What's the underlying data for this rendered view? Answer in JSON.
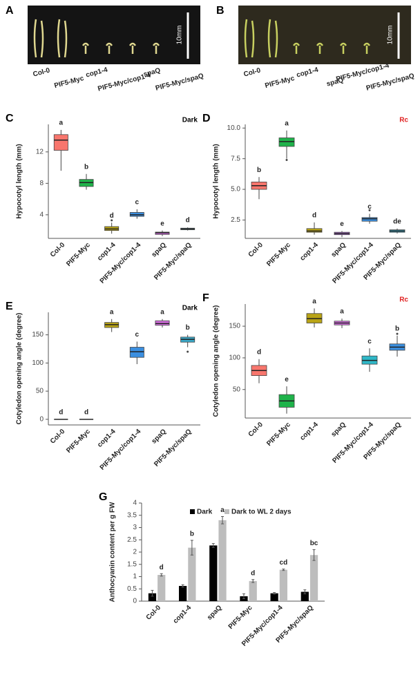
{
  "photos": [
    {
      "panel": "A",
      "scale_label": "10mm",
      "labels": [
        "Col-0",
        "PIF5-Myc",
        "cop1-4",
        "PIF5-Myc/cop1-4",
        "spaQ",
        "PIF5-Myc/spaQ"
      ]
    },
    {
      "panel": "B",
      "scale_label": "10mm",
      "labels": [
        "Col-0",
        "PIF5-Myc",
        "cop1-4",
        "spaQ",
        "PIF5-Myc/cop1-4",
        "PIF5-Myc/spaQ"
      ]
    }
  ],
  "chart_data": [
    {
      "type": "box",
      "panel": "C",
      "condition": "Dark",
      "condition_color": "#000000",
      "ylabel": "Hypocotyl length (mm)",
      "categories": [
        "Col-0",
        "PIF5-Myc",
        "cop1-4",
        "PIF5-Myc/cop1-4",
        "spaQ",
        "PIF5-Myc/spaQ"
      ],
      "colors": [
        "#f8766d",
        "#1fb34a",
        "#b8a316",
        "#3b8fe0",
        "#d56ee0",
        "#3aa8c8"
      ],
      "boxes": [
        {
          "low": 9.6,
          "q1": 12.2,
          "median": 13.5,
          "q3": 14.2,
          "high": 14.8
        },
        {
          "low": 7.2,
          "q1": 7.6,
          "median": 8.1,
          "q3": 8.5,
          "high": 9.2
        },
        {
          "low": 1.6,
          "q1": 2.0,
          "median": 2.2,
          "q3": 2.5,
          "high": 3.0
        },
        {
          "low": 3.5,
          "q1": 3.8,
          "median": 4.0,
          "q3": 4.3,
          "high": 4.7
        },
        {
          "low": 1.3,
          "q1": 1.5,
          "median": 1.7,
          "q3": 1.8,
          "high": 2.0
        },
        {
          "low": 2.0,
          "q1": 2.1,
          "median": 2.2,
          "q3": 2.3,
          "high": 2.4
        }
      ],
      "outliers": [
        {
          "category": "cop1-4",
          "value": 3.3
        }
      ],
      "letters": [
        "a",
        "b",
        "d",
        "c",
        "e",
        "d"
      ],
      "ylim": [
        1,
        15.5
      ],
      "yticks": [
        4,
        8,
        12
      ]
    },
    {
      "type": "box",
      "panel": "D",
      "condition": "Rc",
      "condition_color": "#e02020",
      "ylabel": "Hypocotyl length (mm)",
      "categories": [
        "Col-0",
        "PIF5-Myc",
        "cop1-4",
        "spaQ",
        "PIF5-Myc/cop1-4",
        "PIF5-Myc/spaQ"
      ],
      "colors": [
        "#f8766d",
        "#1fb34a",
        "#b8a316",
        "#b76ee0",
        "#3b8fe0",
        "#3aa8c8"
      ],
      "boxes": [
        {
          "low": 4.2,
          "q1": 5.0,
          "median": 5.3,
          "q3": 5.6,
          "high": 6.0
        },
        {
          "low": 7.5,
          "q1": 8.5,
          "median": 8.9,
          "q3": 9.2,
          "high": 9.8
        },
        {
          "low": 1.3,
          "q1": 1.5,
          "median": 1.6,
          "q3": 1.8,
          "high": 2.3
        },
        {
          "low": 1.1,
          "q1": 1.3,
          "median": 1.4,
          "q3": 1.5,
          "high": 1.6
        },
        {
          "low": 2.2,
          "q1": 2.4,
          "median": 2.6,
          "q3": 2.7,
          "high": 3.0
        },
        {
          "low": 1.4,
          "q1": 1.5,
          "median": 1.6,
          "q3": 1.7,
          "high": 1.8
        }
      ],
      "outliers": [
        {
          "category": "PIF5-Myc",
          "value": 7.4
        },
        {
          "category": "PIF5-Myc/cop1-4",
          "value": 3.3
        }
      ],
      "letters": [
        "b",
        "a",
        "d",
        "e",
        "c",
        "de"
      ],
      "ylim": [
        1,
        10.3
      ],
      "yticks": [
        {
          "value": 2.5,
          "label": "2.5"
        },
        {
          "value": 5,
          "label": "5.0"
        },
        {
          "value": 7.5,
          "label": "7.5"
        },
        {
          "value": 10,
          "label": "10.0"
        }
      ]
    },
    {
      "type": "box",
      "panel": "E",
      "condition": "Dark",
      "condition_color": "#000000",
      "ylabel": "Cotyledon opening angle (degree)",
      "categories": [
        "Col-0",
        "PIF5-Myc",
        "cop1-4",
        "PIF5-Myc/cop1-4",
        "spaQ",
        "PIF5-Myc/spaQ"
      ],
      "colors": [
        "#f8766d",
        "#1fb34a",
        "#b8a316",
        "#3b8fe0",
        "#d56ee0",
        "#3aa8c8"
      ],
      "boxes": [
        {
          "low": 0,
          "q1": 0,
          "median": 0,
          "q3": 0,
          "high": 0
        },
        {
          "low": 0,
          "q1": 0,
          "median": 0,
          "q3": 0,
          "high": 0
        },
        {
          "low": 155,
          "q1": 163,
          "median": 168,
          "q3": 172,
          "high": 178
        },
        {
          "low": 98,
          "q1": 110,
          "median": 120,
          "q3": 128,
          "high": 138
        },
        {
          "low": 163,
          "q1": 167,
          "median": 170,
          "q3": 175,
          "high": 178
        },
        {
          "low": 128,
          "q1": 137,
          "median": 142,
          "q3": 146,
          "high": 150
        }
      ],
      "outliers": [
        {
          "category": "PIF5-Myc/spaQ",
          "value": 120
        }
      ],
      "letters": [
        "d",
        "d",
        "a",
        "c",
        "a",
        "b"
      ],
      "ylim": [
        -10,
        190
      ],
      "yticks": [
        0,
        50,
        100,
        150
      ]
    },
    {
      "type": "box",
      "panel": "F",
      "condition": "Rc",
      "condition_color": "#e02020",
      "ylabel": "Cotyledon opening angle (degree)",
      "categories": [
        "Col-0",
        "PIF5-Myc",
        "cop1-4",
        "spaQ",
        "PIF5-Myc/cop1-4",
        "PIF5-Myc/spaQ"
      ],
      "colors": [
        "#f8766d",
        "#1fb34a",
        "#b8a316",
        "#d56ee0",
        "#2fb8c8",
        "#3b8fe0"
      ],
      "boxes": [
        {
          "low": 60,
          "q1": 72,
          "median": 80,
          "q3": 88,
          "high": 98
        },
        {
          "low": 12,
          "q1": 22,
          "median": 32,
          "q3": 42,
          "high": 55
        },
        {
          "low": 148,
          "q1": 155,
          "median": 162,
          "q3": 170,
          "high": 178
        },
        {
          "low": 147,
          "q1": 152,
          "median": 155,
          "q3": 158,
          "high": 162
        },
        {
          "low": 78,
          "q1": 90,
          "median": 96,
          "q3": 103,
          "high": 115
        },
        {
          "low": 102,
          "q1": 112,
          "median": 117,
          "q3": 122,
          "high": 135
        }
      ],
      "outliers": [
        {
          "category": "PIF5-Myc/spaQ",
          "value": 138
        }
      ],
      "letters": [
        "d",
        "e",
        "a",
        "a",
        "c",
        "b"
      ],
      "ylim": [
        5,
        185
      ],
      "yticks": [
        50,
        100,
        150
      ]
    },
    {
      "type": "bar",
      "panel": "G",
      "ylabel": "Anthocyanin content per g FW",
      "categories": [
        "Col-0",
        "cop1-4",
        "spaQ",
        "PIF5-Myc",
        "PIF5-Myc/cop1-4",
        "PIF5-Myc/spaQ"
      ],
      "series": [
        {
          "name": "Dark",
          "color": "#000000",
          "values": [
            0.32,
            0.62,
            2.27,
            0.2,
            0.32,
            0.38
          ],
          "errors": [
            0.12,
            0.05,
            0.08,
            0.1,
            0.03,
            0.08
          ]
        },
        {
          "name": "Dark to WL 2 days",
          "color": "#bdbdbd",
          "values": [
            1.07,
            2.18,
            3.3,
            0.82,
            1.28,
            1.88
          ],
          "errors": [
            0.05,
            0.3,
            0.15,
            0.06,
            0.03,
            0.22
          ]
        }
      ],
      "letters": [
        "d",
        "b",
        "a",
        "d",
        "cd",
        "bc"
      ],
      "ylim": [
        0,
        4
      ],
      "yticks": [
        0,
        0.5,
        1,
        1.5,
        2,
        2.5,
        3,
        3.5,
        4
      ]
    }
  ]
}
